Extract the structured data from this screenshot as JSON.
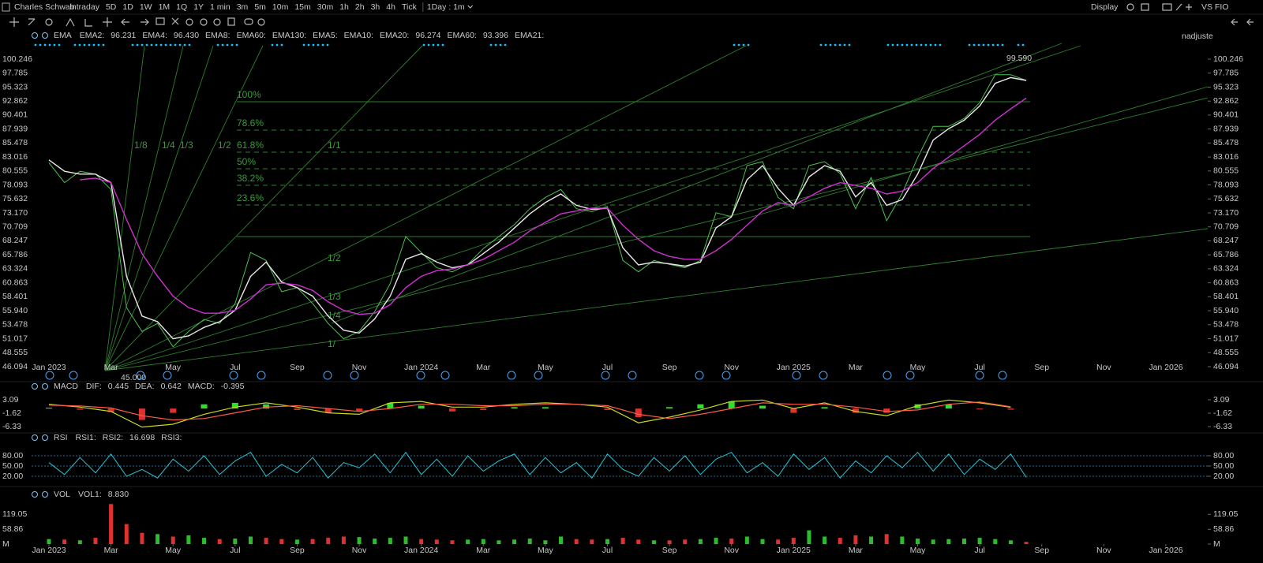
{
  "toolbar": {
    "title": "Charles Schwab",
    "periods": [
      "Intraday",
      "5D",
      "1D",
      "1W",
      "1M",
      "1Q",
      "1Y",
      "1 min",
      "3m",
      "5m",
      "10m",
      "15m",
      "30m",
      "1h",
      "2h",
      "3h",
      "4h",
      "Tick"
    ],
    "active": 2,
    "interval": "1Day : 1m",
    "display": "Display",
    "compare": "VS FIO",
    "adjust": "nadjuste"
  },
  "chart_data": [
    {
      "type": "line",
      "x": [
        0,
        0.5,
        1,
        1.5,
        2,
        2.5,
        3,
        3.5,
        4,
        4.5,
        5,
        5.5,
        6,
        6.5,
        7,
        7.5,
        8,
        8.5,
        9,
        9.5,
        10,
        10.5,
        11,
        11.5,
        12,
        12.5,
        13,
        13.5,
        14,
        14.5,
        15,
        15.5,
        16,
        16.5,
        17,
        17.5,
        18,
        18.5,
        19,
        19.5,
        20,
        20.5,
        21,
        21.5,
        22,
        22.5,
        23,
        23.5,
        24,
        24.5,
        25,
        25.5,
        26,
        26.5,
        27,
        27.5,
        28,
        28.5,
        29,
        29.5,
        30,
        30.5,
        31,
        31.5
      ],
      "xlim": [
        -0.56,
        37.35
      ],
      "xticks": [
        {
          "value": 0,
          "label": "Jan 2023"
        },
        {
          "value": 2,
          "label": "Mar"
        },
        {
          "value": 4,
          "label": "May"
        },
        {
          "value": 6,
          "label": "Jul"
        },
        {
          "value": 8,
          "label": "Sep"
        },
        {
          "value": 10,
          "label": "Nov"
        },
        {
          "value": 12,
          "label": "Jan 2024"
        },
        {
          "value": 14,
          "label": "Mar"
        },
        {
          "value": 16,
          "label": "May"
        },
        {
          "value": 18,
          "label": "Jul"
        },
        {
          "value": 20,
          "label": "Sep"
        },
        {
          "value": 22,
          "label": "Nov"
        },
        {
          "value": 24,
          "label": "Jan 2025"
        },
        {
          "value": 26,
          "label": "Mar"
        },
        {
          "value": 28,
          "label": "May"
        },
        {
          "value": 30,
          "label": "Jul"
        },
        {
          "value": 32,
          "label": "Sep"
        },
        {
          "value": 34,
          "label": "Nov"
        },
        {
          "value": 36,
          "label": "Jan 2026"
        }
      ],
      "ylim": [
        43.73,
        102.61
      ],
      "yticks": [
        100.246,
        97.785,
        95.323,
        92.862,
        90.401,
        87.939,
        85.478,
        83.016,
        80.555,
        78.093,
        75.632,
        {
          "value": 73.17,
          "label": "73.170"
        },
        70.709,
        68.247,
        65.786,
        63.324,
        60.863,
        58.401,
        {
          "value": 55.94,
          "label": "55.940"
        },
        53.478,
        51.017,
        48.555,
        46.094
      ],
      "series": [
        {
          "color": "#4fbf4f",
          "values": [
            82.0,
            78.5,
            80.5,
            80.0,
            77.3,
            56.5,
            52.3,
            53.7,
            49.6,
            52.3,
            54.4,
            53.7,
            57.2,
            66.2,
            64.8,
            59.3,
            60.0,
            57.2,
            53.7,
            51.0,
            52.3,
            55.8,
            60.7,
            69.0,
            66.2,
            63.5,
            62.8,
            64.1,
            66.9,
            69.0,
            71.1,
            73.9,
            75.9,
            77.3,
            73.9,
            73.4,
            74.3,
            64.8,
            62.8,
            64.8,
            64.1,
            63.5,
            64.8,
            73.2,
            72.5,
            81.5,
            82.2,
            75.9,
            73.9,
            81.5,
            82.2,
            80.1,
            73.9,
            79.4,
            71.8,
            76.6,
            82.9,
            88.4,
            88.4,
            89.8,
            92.6,
            97.5,
            97.5,
            96.5
          ]
        },
        {
          "color": "#e8e8e8",
          "values": [
            82.5,
            80.5,
            80,
            80,
            78.5,
            62,
            55,
            54,
            51,
            51.5,
            53,
            54,
            56,
            62,
            64.5,
            61,
            60,
            58.5,
            55,
            52.5,
            52,
            54.5,
            58.5,
            65,
            66,
            64.5,
            63.5,
            64,
            66,
            68,
            70.5,
            73,
            75,
            76.5,
            74.5,
            73.8,
            74,
            67,
            64,
            64.5,
            64.2,
            63.8,
            64.5,
            70.5,
            72.5,
            79,
            81.5,
            77.5,
            74.5,
            79.5,
            81.5,
            80.5,
            76,
            78.5,
            74.5,
            75.5,
            80,
            86,
            88,
            89.5,
            92,
            96,
            97,
            96.5
          ]
        },
        {
          "color": "#d030d0",
          "values": [
            null,
            null,
            79,
            79.3,
            78.5,
            72,
            66,
            62,
            58.5,
            56.5,
            55.5,
            55.5,
            56,
            58,
            60.5,
            60.8,
            60.5,
            59.5,
            57.5,
            56,
            55.3,
            55.5,
            57,
            60,
            62,
            63,
            63.3,
            64,
            65,
            66.5,
            68,
            70,
            71.5,
            73,
            73.5,
            74,
            74,
            71,
            68.5,
            66.5,
            65.5,
            65,
            65,
            66.5,
            68.5,
            71,
            73.5,
            75,
            74.5,
            76,
            77.5,
            78.5,
            78,
            77.5,
            76.5,
            77,
            78.5,
            81,
            83,
            85,
            87,
            89.5,
            91.5,
            93.396
          ]
        }
      ],
      "fib_levels": [
        {
          "value": 92.75,
          "label": "100%"
        },
        {
          "value": 87.75,
          "label": "78.6%"
        },
        {
          "value": 83.86,
          "label": "61.8%"
        },
        {
          "value": 80.95,
          "label": "50%"
        },
        {
          "value": 78.03,
          "label": "38.2%"
        },
        {
          "value": 74.56,
          "label": "23.6%"
        }
      ],
      "fib_base": 69.0,
      "gann_labels": [
        "1/8",
        "1/4",
        "1/3",
        "1/2",
        "1/1",
        "1/2",
        "1/3",
        "1/4",
        "1/"
      ],
      "annotations": [
        "99.590",
        "45.000"
      ],
      "legend": {
        "name": "EMA",
        "items": [
          {
            "text": "EMA2:",
            "color": "#ff5a4a"
          },
          {
            "text": "96.231",
            "color": "#ff5a4a"
          },
          {
            "text": "EMA4:",
            "color": "#7fc8f8"
          },
          {
            "text": "96.430",
            "color": "#7fc8f8"
          },
          {
            "text": "EMA8:",
            "color": "#e040e0"
          },
          {
            "text": "EMA60:",
            "color": "#7fc8f8"
          },
          {
            "text": "EMA130:",
            "color": "#2ee02e"
          },
          {
            "text": "EMA5:",
            "color": "#ff5a4a"
          },
          {
            "text": "EMA10:",
            "color": "#7fc8f8"
          },
          {
            "text": "EMA20:",
            "color": "#ffffff"
          },
          {
            "text": "96.274",
            "color": "#ffffff"
          },
          {
            "text": "EMA60:",
            "color": "#e040e0"
          },
          {
            "text": "93.396",
            "color": "#e040e0"
          },
          {
            "text": "EMA21:",
            "color": "#d6d640"
          }
        ]
      }
    },
    {
      "type": "macd",
      "x": [
        0,
        1,
        2,
        3,
        4,
        5,
        6,
        7,
        8,
        9,
        10,
        11,
        12,
        13,
        14,
        15,
        16,
        17,
        18,
        19,
        20,
        21,
        22,
        23,
        24,
        25,
        26,
        27,
        28,
        29,
        30,
        31
      ],
      "xlim": [
        -0.56,
        37.35
      ],
      "ylim": [
        -8.27,
        5.58
      ],
      "yticks": [
        3.09,
        -1.62,
        -6.33
      ],
      "series": [
        {
          "color": "#c8d820",
          "values": [
            1.5,
            0.5,
            -1,
            -6.5,
            -5.5,
            -2,
            0.5,
            2,
            0.5,
            -1.5,
            -2,
            2,
            2.5,
            0.5,
            0.5,
            1.5,
            2,
            1.5,
            0.5,
            -5,
            -3,
            -0.5,
            2.5,
            3,
            0,
            2,
            -1,
            -2.5,
            1,
            3,
            2,
            0.445
          ]
        },
        {
          "color": "#ff5a4a",
          "values": [
            1.2,
            0.9,
            0.2,
            -2.5,
            -4,
            -3.5,
            -1.5,
            0.5,
            1,
            0,
            -1,
            0,
            1.5,
            1.5,
            1,
            1,
            1.5,
            1.5,
            1,
            -2,
            -3.5,
            -2,
            0,
            2,
            1.5,
            1.5,
            0.5,
            -1,
            -0.5,
            1.5,
            2.3,
            0.642
          ]
        }
      ],
      "histogram": {
        "values": [
          0.3,
          -0.4,
          -1.2,
          -4,
          -1.5,
          1.5,
          2,
          1.5,
          -0.5,
          -1.5,
          -1,
          2,
          1,
          -1,
          -0.5,
          0.5,
          0.5,
          0,
          -0.5,
          -3,
          0.5,
          1.5,
          2.5,
          1,
          -1.5,
          0.5,
          -1.5,
          -1.5,
          1.5,
          1.5,
          -0.3,
          -0.395
        ],
        "up_color": "#2ee02e",
        "down_color": "#e0302f"
      },
      "legend": {
        "name": "MACD",
        "items": [
          {
            "text": "DIF:",
            "color": "#2ee02e"
          },
          {
            "text": "0.445",
            "color": "#2ee02e"
          },
          {
            "text": "DEA:",
            "color": "#ff5a4a"
          },
          {
            "text": "0.642",
            "color": "#ff5a4a"
          },
          {
            "text": "MACD:",
            "color": "#e040e0"
          },
          {
            "text": "-0.395",
            "color": "#e040e0"
          }
        ]
      }
    },
    {
      "type": "line",
      "x": [
        0,
        0.5,
        1,
        1.5,
        2,
        2.5,
        3,
        3.5,
        4,
        4.5,
        5,
        5.5,
        6,
        6.5,
        7,
        7.5,
        8,
        8.5,
        9,
        9.5,
        10,
        10.5,
        11,
        11.5,
        12,
        12.5,
        13,
        13.5,
        14,
        14.5,
        15,
        15.5,
        16,
        16.5,
        17,
        17.5,
        18,
        18.5,
        19,
        19.5,
        20,
        20.5,
        21,
        21.5,
        22,
        22.5,
        23,
        23.5,
        24,
        24.5,
        25,
        25.5,
        26,
        26.5,
        27,
        27.5,
        28,
        28.5,
        29,
        29.5,
        30,
        30.5,
        31,
        31.5
      ],
      "xlim": [
        -0.56,
        37.35
      ],
      "ylim": [
        1.5,
        107.7
      ],
      "yticks": [
        {
          "value": 80,
          "label": "80.00"
        },
        {
          "value": 50,
          "label": "50.00"
        },
        {
          "value": 20,
          "label": "20.00"
        }
      ],
      "grid": true,
      "series": [
        {
          "color": "#29c5d6",
          "values": [
            60,
            25,
            75,
            30,
            85,
            20,
            40,
            15,
            70,
            35,
            80,
            25,
            65,
            90,
            20,
            55,
            30,
            75,
            15,
            60,
            45,
            85,
            30,
            90,
            25,
            70,
            20,
            80,
            35,
            65,
            85,
            25,
            75,
            30,
            60,
            15,
            85,
            40,
            20,
            75,
            35,
            80,
            25,
            70,
            90,
            30,
            60,
            20,
            85,
            40,
            75,
            15,
            65,
            30,
            80,
            45,
            90,
            35,
            85,
            25,
            70,
            40,
            85,
            16.698
          ]
        }
      ],
      "legend": {
        "name": "RSI",
        "items": [
          {
            "text": "RSI1:",
            "color": "#ff5a4a"
          },
          {
            "text": "RSI2:",
            "color": "#29c5d6"
          },
          {
            "text": "16.698",
            "color": "#29c5d6"
          },
          {
            "text": "RSI3:",
            "color": "#aaaaaa"
          }
        ]
      }
    },
    {
      "type": "bar",
      "x": [
        0,
        0.5,
        1,
        1.5,
        2,
        2.5,
        3,
        3.5,
        4,
        4.5,
        5,
        5.5,
        6,
        6.5,
        7,
        7.5,
        8,
        8.5,
        9,
        9.5,
        10,
        10.5,
        11,
        11.5,
        12,
        12.5,
        13,
        13.5,
        14,
        14.5,
        15,
        15.5,
        16,
        16.5,
        17,
        17.5,
        18,
        18.5,
        19,
        19.5,
        20,
        20.5,
        21,
        21.5,
        22,
        22.5,
        23,
        23.5,
        24,
        24.5,
        25,
        25.5,
        26,
        26.5,
        27,
        27.5,
        28,
        28.5,
        29,
        29.5,
        30,
        30.5,
        31,
        31.5
      ],
      "xlim": [
        -0.56,
        37.35
      ],
      "ylim": [
        0,
        182.8
      ],
      "yticks": [
        119.05,
        58.86,
        {
          "value": 0,
          "label": "M"
        }
      ],
      "values": [
        20,
        18,
        15,
        25,
        160,
        80,
        45,
        40,
        30,
        35,
        25,
        20,
        22,
        30,
        25,
        20,
        18,
        20,
        25,
        30,
        28,
        22,
        25,
        30,
        20,
        18,
        15,
        18,
        20,
        15,
        18,
        22,
        15,
        30,
        20,
        18,
        20,
        25,
        18,
        15,
        15,
        18,
        20,
        25,
        22,
        30,
        20,
        18,
        25,
        55,
        30,
        25,
        35,
        30,
        40,
        30,
        22,
        18,
        20,
        22,
        25,
        20,
        15,
        8.83
      ],
      "up_color": "#2bbd2b",
      "down_color": "#e0302f",
      "legend": {
        "name": "VOL",
        "items": [
          {
            "text": "VOL1:",
            "color": "#ff5a4a"
          },
          {
            "text": "8.830",
            "color": "#ff5a4a"
          }
        ]
      }
    }
  ]
}
